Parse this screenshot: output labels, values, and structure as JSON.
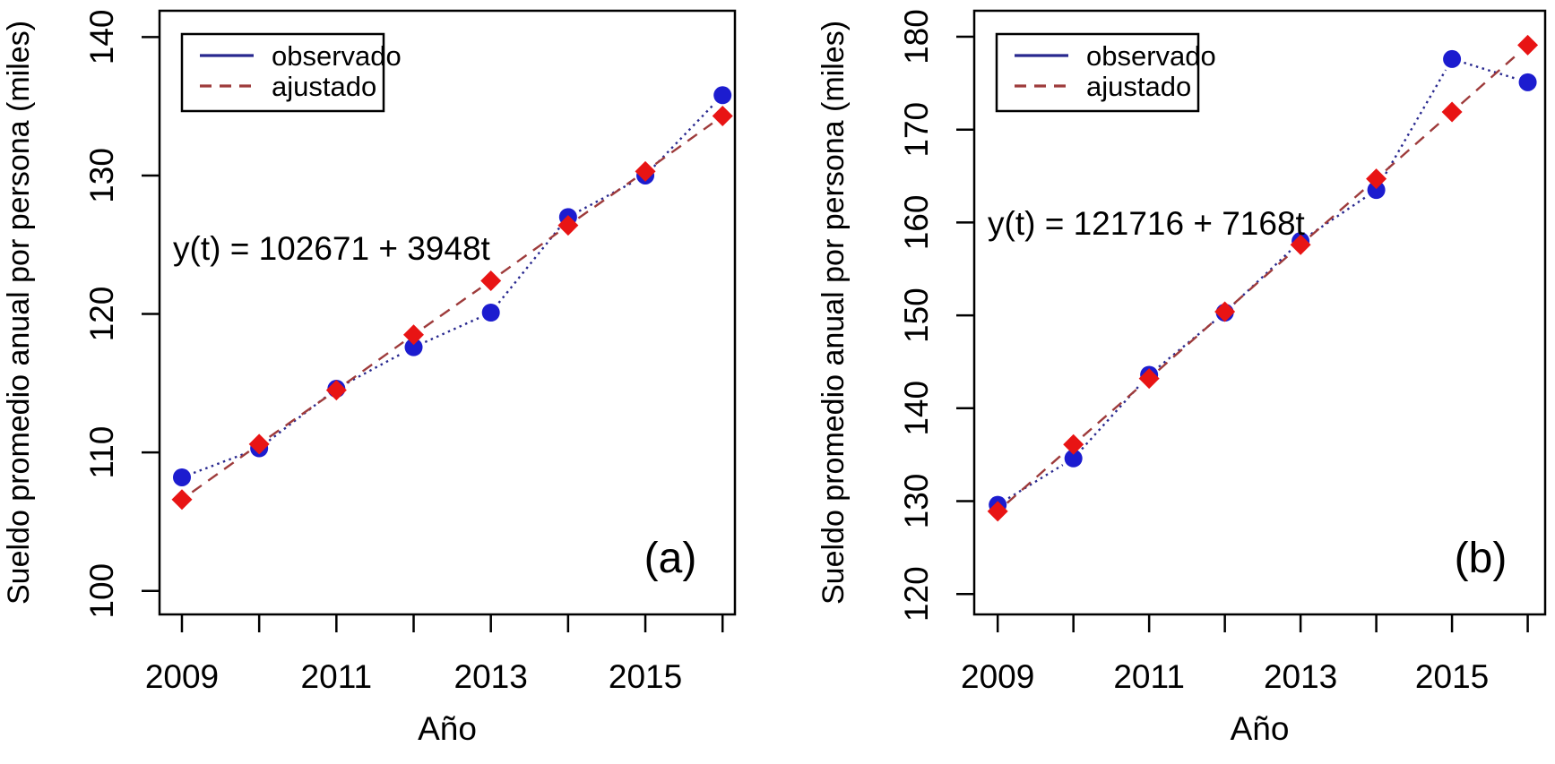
{
  "figure": {
    "background": "#ffffff",
    "axis_color": "#000000",
    "text_color": "#000000"
  },
  "chart_data": [
    {
      "type": "line",
      "panel_label": "(a)",
      "xlabel": "Año",
      "ylabel": "Sueldo promedio anual por persona (miles)",
      "equation": "y(t) = 102671 + 3948t",
      "equation_color": "#d32f2f",
      "x": [
        2009,
        2010,
        2011,
        2012,
        2013,
        2014,
        2015,
        2016
      ],
      "xtick_labels": [
        "2009",
        "",
        "2011",
        "",
        "2013",
        "",
        "2015",
        ""
      ],
      "yticks": [
        100,
        110,
        120,
        130,
        140
      ],
      "xlim": [
        2008.71,
        2016.16
      ],
      "ylim": [
        98.3,
        141.9
      ],
      "grid": false,
      "legend_position": "top-left",
      "series": [
        {
          "name": "observado",
          "marker": "circle",
          "line_style": "dotted",
          "legend_line_style": "solid",
          "line_color": "#28288f",
          "marker_color": "#1c1ccf",
          "values": [
            108.2,
            110.3,
            114.6,
            117.6,
            120.1,
            127.0,
            130.0,
            135.8
          ]
        },
        {
          "name": "ajustado",
          "marker": "diamond",
          "line_style": "dashed",
          "legend_line_style": "dashed",
          "line_color": "#9e3b3b",
          "marker_color": "#e81414",
          "values": [
            106.6,
            110.6,
            114.5,
            118.5,
            122.4,
            126.4,
            130.3,
            134.3
          ]
        }
      ]
    },
    {
      "type": "line",
      "panel_label": "(b)",
      "xlabel": "Año",
      "ylabel": "Sueldo promedio anual por persona (miles)",
      "equation": "y(t) = 121716 + 7168t",
      "equation_color": "#d32f2f",
      "x": [
        2009,
        2010,
        2011,
        2012,
        2013,
        2014,
        2015,
        2016
      ],
      "xtick_labels": [
        "2009",
        "",
        "2011",
        "",
        "2013",
        "",
        "2015",
        ""
      ],
      "yticks": [
        120,
        130,
        140,
        150,
        160,
        170,
        180
      ],
      "xlim": [
        2008.69,
        2016.23
      ],
      "ylim": [
        117.8,
        182.8
      ],
      "grid": false,
      "legend_position": "top-left",
      "series": [
        {
          "name": "observado",
          "marker": "circle",
          "line_style": "dotted",
          "legend_line_style": "solid",
          "line_color": "#28288f",
          "marker_color": "#1c1ccf",
          "values": [
            129.6,
            134.6,
            143.6,
            150.3,
            158.0,
            163.5,
            177.6,
            175.1
          ]
        },
        {
          "name": "ajustado",
          "marker": "diamond",
          "line_style": "dashed",
          "legend_line_style": "dashed",
          "line_color": "#9e3b3b",
          "marker_color": "#e81414",
          "values": [
            128.9,
            136.1,
            143.2,
            150.4,
            157.6,
            164.7,
            171.9,
            179.1
          ]
        }
      ]
    }
  ]
}
